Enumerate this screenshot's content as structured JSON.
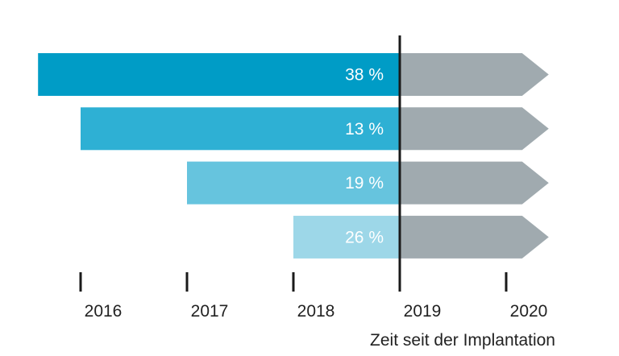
{
  "chart_data": {
    "type": "bar",
    "orientation": "horizontal",
    "xlabel": "Zeit seit der Implantation",
    "x_ticks": [
      "2016",
      "2017",
      "2018",
      "2019",
      "2020"
    ],
    "reference_line": "2019",
    "bars": [
      {
        "start": 2015.6,
        "end": 2019,
        "label": "38 %",
        "color": "#009cc6"
      },
      {
        "start": 2016.0,
        "end": 2019,
        "label": "13 %",
        "color": "#2eb0d4"
      },
      {
        "start": 2017.0,
        "end": 2019,
        "label": "19 %",
        "color": "#66c4de"
      },
      {
        "start": 2018.0,
        "end": 2019,
        "label": "26 %",
        "color": "#9dd7e8"
      }
    ],
    "arrow_extension": {
      "start": 2019,
      "end": 2020.4,
      "color": "#a0aaaf"
    },
    "colors": {
      "axis": "#1a1a1a",
      "text": "#222222",
      "label_text": "#ffffff"
    }
  }
}
